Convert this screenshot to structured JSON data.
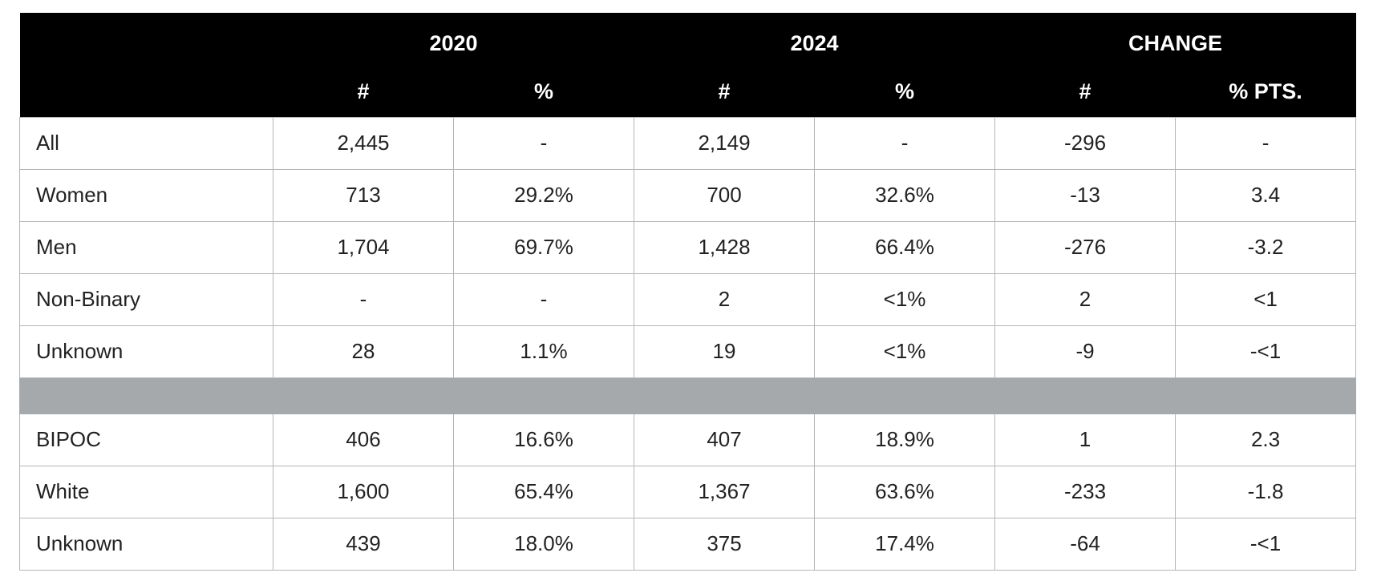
{
  "chart_data": {
    "type": "table",
    "header": {
      "groups": [
        "2020",
        "2024",
        "CHANGE"
      ],
      "subheaders": [
        "#",
        "%",
        "#",
        "%",
        "#",
        "% PTS."
      ]
    },
    "rows": [
      {
        "label": "All",
        "cells": [
          "2,445",
          "-",
          "2,149",
          "-",
          "-296",
          "-"
        ]
      },
      {
        "label": "Women",
        "cells": [
          "713",
          "29.2%",
          "700",
          "32.6%",
          "-13",
          "3.4"
        ]
      },
      {
        "label": "Men",
        "cells": [
          "1,704",
          "69.7%",
          "1,428",
          "66.4%",
          "-276",
          "-3.2"
        ]
      },
      {
        "label": "Non-Binary",
        "cells": [
          "-",
          "-",
          "2",
          "<1%",
          "2",
          "<1"
        ]
      },
      {
        "label": "Unknown",
        "cells": [
          "28",
          "1.1%",
          "19",
          "<1%",
          "-9",
          "-<1"
        ]
      },
      {
        "label": "BIPOC",
        "cells": [
          "406",
          "16.6%",
          "407",
          "18.9%",
          "1",
          "2.3"
        ]
      },
      {
        "label": "White",
        "cells": [
          "1,600",
          "65.4%",
          "1,367",
          "63.6%",
          "-233",
          "-1.8"
        ]
      },
      {
        "label": "Unknown",
        "cells": [
          "439",
          "18.0%",
          "375",
          "17.4%",
          "-64",
          "-<1"
        ]
      }
    ],
    "colors": {
      "header_bg": "#000000",
      "header_text": "#ffffff",
      "separator_bg": "#a5a9ab",
      "grid": "#b3b6b8"
    }
  }
}
